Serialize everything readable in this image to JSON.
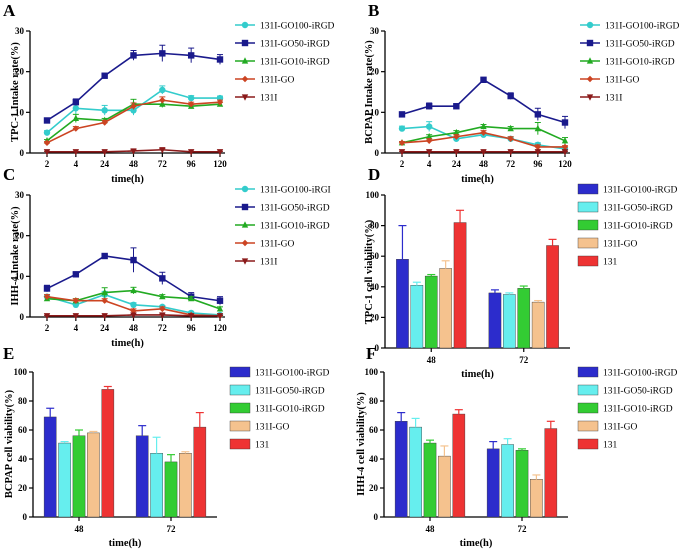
{
  "figure": {
    "panels": [
      "A",
      "B",
      "C",
      "D",
      "E",
      "F"
    ]
  },
  "chart_data": [
    {
      "panel": "A",
      "type": "line",
      "ylabel": "TPC-1 Intake rate(%)",
      "xlabel": "time(h)",
      "categories": [
        "2",
        "4",
        "24",
        "48",
        "72",
        "96",
        "120"
      ],
      "ylim": [
        0,
        30
      ],
      "yticks": [
        0,
        10,
        20,
        30
      ],
      "series": [
        {
          "name": "131I-GO100-iRGD",
          "color": "#33cccc",
          "marker": "circle",
          "values": [
            5,
            11,
            10.5,
            10.5,
            15.5,
            13.5,
            13.5
          ],
          "errors": [
            0.5,
            1.5,
            1.2,
            1.2,
            1.0,
            0.6,
            0.5
          ]
        },
        {
          "name": "131I-GO50-iRGD",
          "color": "#1a1a8c",
          "marker": "square",
          "values": [
            8,
            12.5,
            19,
            24,
            24.5,
            24,
            23
          ],
          "errors": [
            0.5,
            0.8,
            0.5,
            1.2,
            2.0,
            1.8,
            1.2
          ]
        },
        {
          "name": "131I-GO10-iRGD",
          "color": "#22aa22",
          "marker": "triangle",
          "values": [
            3,
            8.5,
            8,
            12,
            12,
            11.5,
            12
          ],
          "errors": [
            0.3,
            1.0,
            0.5,
            1.2,
            0.8,
            0.5,
            0.5
          ]
        },
        {
          "name": "131I-GO",
          "color": "#cc4422",
          "marker": "diamond",
          "values": [
            2.5,
            6,
            7.5,
            11.5,
            13,
            12,
            12.5
          ],
          "errors": [
            0.3,
            0.5,
            0.5,
            0.8,
            0.8,
            0.5,
            0.5
          ]
        },
        {
          "name": "131I",
          "color": "#8b1a1a",
          "marker": "tdown",
          "values": [
            0.3,
            0.3,
            0.3,
            0.5,
            0.8,
            0.3,
            0.3
          ],
          "errors": [
            0.1,
            0.1,
            0.1,
            0.3,
            0.3,
            0.1,
            0.1
          ]
        }
      ]
    },
    {
      "panel": "B",
      "type": "line",
      "ylabel": "BCPAP Intake rate(%)",
      "xlabel": "time(h)",
      "categories": [
        "2",
        "4",
        "24",
        "48",
        "72",
        "96",
        "120"
      ],
      "ylim": [
        0,
        30
      ],
      "yticks": [
        0,
        10,
        20,
        30
      ],
      "series": [
        {
          "name": "131I-GO100-iRGD",
          "color": "#33cccc",
          "marker": "circle",
          "values": [
            6,
            6.5,
            3.5,
            4.5,
            3.5,
            2,
            1
          ],
          "errors": [
            0.6,
            1.2,
            0.5,
            0.5,
            0.5,
            0.5,
            0.3
          ]
        },
        {
          "name": "131I-GO50-iRGD",
          "color": "#1a1a8c",
          "marker": "square",
          "values": [
            9.5,
            11.5,
            11.5,
            18,
            14,
            9.5,
            7.5
          ],
          "errors": [
            0.5,
            0.8,
            0.3,
            0.5,
            0.8,
            1.5,
            1.5
          ]
        },
        {
          "name": "131I-GO10-iRGD",
          "color": "#22aa22",
          "marker": "triangle",
          "values": [
            2.5,
            4,
            5,
            6.5,
            6,
            6,
            3
          ],
          "errors": [
            0.3,
            0.5,
            0.5,
            0.5,
            0.5,
            1.5,
            0.8
          ]
        },
        {
          "name": "131I-GO",
          "color": "#cc4422",
          "marker": "diamond",
          "values": [
            2.5,
            3,
            4,
            5,
            3.5,
            1.5,
            1.5
          ],
          "errors": [
            0.3,
            0.5,
            0.5,
            0.5,
            0.5,
            0.5,
            0.3
          ]
        },
        {
          "name": "131I",
          "color": "#8b1a1a",
          "marker": "tdown",
          "values": [
            0.3,
            0.3,
            0.3,
            0.3,
            0.3,
            0.3,
            0.3
          ],
          "errors": [
            0.1,
            0.1,
            0.1,
            0.1,
            0.1,
            0.1,
            0.1
          ]
        }
      ]
    },
    {
      "panel": "C",
      "type": "line",
      "ylabel": "IHH-4 Intake rate(%)",
      "xlabel": "time(h)",
      "categories": [
        "2",
        "4",
        "24",
        "48",
        "72",
        "96",
        "120"
      ],
      "ylim": [
        0,
        30
      ],
      "yticks": [
        0,
        10,
        20,
        30
      ],
      "series": [
        {
          "name": "131I-GO100-iRGI",
          "color": "#33cccc",
          "marker": "circle",
          "values": [
            5,
            3,
            5.5,
            3,
            2.5,
            1,
            0.5
          ],
          "errors": [
            0.5,
            0.5,
            0.8,
            0.5,
            0.3,
            0.3,
            0.2
          ]
        },
        {
          "name": "131I-GO50-iRGD",
          "color": "#1a1a8c",
          "marker": "square",
          "values": [
            7,
            10.5,
            15,
            14,
            9.5,
            5,
            4
          ],
          "errors": [
            0.8,
            0.5,
            0.3,
            3.0,
            1.5,
            1.0,
            1.0
          ]
        },
        {
          "name": "131I-GO10-iRGD",
          "color": "#22aa22",
          "marker": "triangle",
          "values": [
            4.5,
            4,
            6,
            6.5,
            5,
            4.5,
            2
          ],
          "errors": [
            0.5,
            0.5,
            1.2,
            0.8,
            0.5,
            0.5,
            0.5
          ]
        },
        {
          "name": "131I-GO",
          "color": "#cc4422",
          "marker": "diamond",
          "values": [
            5,
            4,
            4,
            1.5,
            2,
            0.5,
            0.3
          ],
          "errors": [
            0.5,
            0.5,
            0.5,
            0.5,
            0.5,
            0.2,
            0.1
          ]
        },
        {
          "name": "131I",
          "color": "#8b1a1a",
          "marker": "tdown",
          "values": [
            0.3,
            0.3,
            0.3,
            0.5,
            0.5,
            0.3,
            0.3
          ],
          "errors": [
            0.1,
            0.1,
            0.1,
            0.2,
            0.2,
            0.1,
            0.1
          ]
        }
      ]
    },
    {
      "panel": "D",
      "type": "bar",
      "ylabel": "TPC-1 cell viability(%)",
      "xlabel": "time(h)",
      "categories": [
        "48",
        "72"
      ],
      "ylim": [
        0,
        100
      ],
      "yticks": [
        0,
        20,
        40,
        60,
        80,
        100
      ],
      "series": [
        {
          "name": "131I-GO100-iRGD",
          "color": "#2c2ccc",
          "values": [
            58,
            36
          ],
          "errors": [
            22,
            2
          ]
        },
        {
          "name": "131I-GO50-iRGD",
          "color": "#66eeee",
          "values": [
            41,
            35
          ],
          "errors": [
            2,
            1
          ]
        },
        {
          "name": "131I-GO10-iRGD",
          "color": "#33cc33",
          "values": [
            47,
            39
          ],
          "errors": [
            1,
            1.5
          ]
        },
        {
          "name": "131I-GO",
          "color": "#f5c28e",
          "values": [
            52,
            30
          ],
          "errors": [
            5,
            1
          ]
        },
        {
          "name": "131",
          "color": "#ee3333",
          "values": [
            82,
            67
          ],
          "errors": [
            8,
            4
          ]
        }
      ]
    },
    {
      "panel": "E",
      "type": "bar",
      "ylabel": "BCPAP cell viability(%)",
      "xlabel": "time(h)",
      "categories": [
        "48",
        "72"
      ],
      "ylim": [
        0,
        100
      ],
      "yticks": [
        0,
        20,
        40,
        60,
        80,
        100
      ],
      "series": [
        {
          "name": "131I-GO100-iRGD",
          "color": "#2c2ccc",
          "values": [
            69,
            56
          ],
          "errors": [
            6,
            7
          ]
        },
        {
          "name": "131I-GO50-iRGD",
          "color": "#66eeee",
          "values": [
            51,
            44
          ],
          "errors": [
            1,
            11
          ]
        },
        {
          "name": "131I-GO10-iRGD",
          "color": "#33cc33",
          "values": [
            56,
            38
          ],
          "errors": [
            4,
            5
          ]
        },
        {
          "name": "131I-GO",
          "color": "#f5c28e",
          "values": [
            58,
            44
          ],
          "errors": [
            1,
            1
          ]
        },
        {
          "name": "131",
          "color": "#ee3333",
          "values": [
            88,
            62
          ],
          "errors": [
            2,
            10
          ]
        }
      ]
    },
    {
      "panel": "F",
      "type": "bar",
      "ylabel": "IHH-4 cell viability(%)",
      "xlabel": "time(h)",
      "categories": [
        "48",
        "72"
      ],
      "ylim": [
        0,
        100
      ],
      "yticks": [
        0,
        20,
        40,
        60,
        80,
        100
      ],
      "series": [
        {
          "name": "131I-GO100-iRGD",
          "color": "#2c2ccc",
          "values": [
            66,
            47
          ],
          "errors": [
            6,
            5
          ]
        },
        {
          "name": "131I-GO50-iRGD",
          "color": "#66eeee",
          "values": [
            62,
            50
          ],
          "errors": [
            6,
            4
          ]
        },
        {
          "name": "131I-GO10-iRGD",
          "color": "#33cc33",
          "values": [
            51,
            46
          ],
          "errors": [
            2,
            1
          ]
        },
        {
          "name": "131I-GO",
          "color": "#f5c28e",
          "values": [
            42,
            26
          ],
          "errors": [
            7,
            3
          ]
        },
        {
          "name": "131",
          "color": "#ee3333",
          "values": [
            71,
            61
          ],
          "errors": [
            3,
            5
          ]
        }
      ]
    }
  ]
}
